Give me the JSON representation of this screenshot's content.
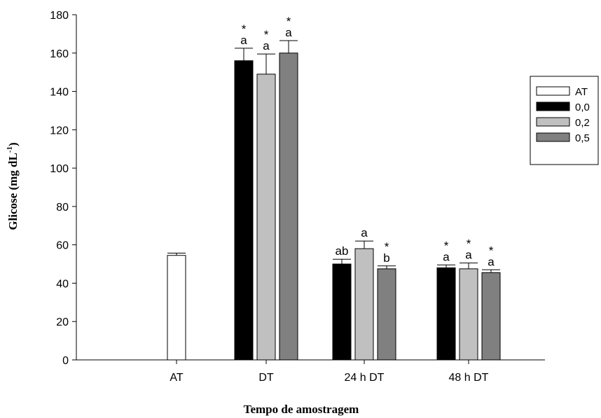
{
  "chart_data": {
    "type": "bar",
    "xlabel": "Tempo de amostragem",
    "ylabel": {
      "main": "Glicose (mg dL",
      "sup": "-1",
      "end": ")"
    },
    "ylim": [
      0,
      180
    ],
    "yticks": [
      0,
      20,
      40,
      60,
      80,
      100,
      120,
      140,
      160,
      180
    ],
    "categories": [
      "AT",
      "DT",
      "24 h DT",
      "48 h DT"
    ],
    "legend_position": "right",
    "series": [
      {
        "name": "AT",
        "color": "#ffffff",
        "values": [
          54.5,
          null,
          null,
          null
        ],
        "errors": [
          1.2,
          null,
          null,
          null
        ],
        "letters": [
          "",
          "",
          "",
          ""
        ],
        "stars": [
          false,
          false,
          false,
          false
        ]
      },
      {
        "name": "0,0",
        "color": "#000000",
        "values": [
          null,
          156,
          50,
          48
        ],
        "errors": [
          null,
          6.5,
          2.5,
          1.5
        ],
        "letters": [
          "",
          "a",
          "ab",
          "a"
        ],
        "stars": [
          false,
          true,
          false,
          true
        ]
      },
      {
        "name": "0,2",
        "color": "#c0c0c0",
        "values": [
          null,
          149,
          58,
          47.5
        ],
        "errors": [
          null,
          10.5,
          4,
          3
        ],
        "letters": [
          "",
          "a",
          "a",
          "a"
        ],
        "stars": [
          false,
          true,
          false,
          true
        ]
      },
      {
        "name": "0,5",
        "color": "#808080",
        "values": [
          null,
          160,
          47.5,
          45.5
        ],
        "errors": [
          null,
          6.5,
          1.5,
          1.5
        ],
        "letters": [
          "",
          "a",
          "b",
          "a"
        ],
        "stars": [
          false,
          true,
          true,
          true
        ]
      }
    ],
    "star_symbol": "*"
  }
}
